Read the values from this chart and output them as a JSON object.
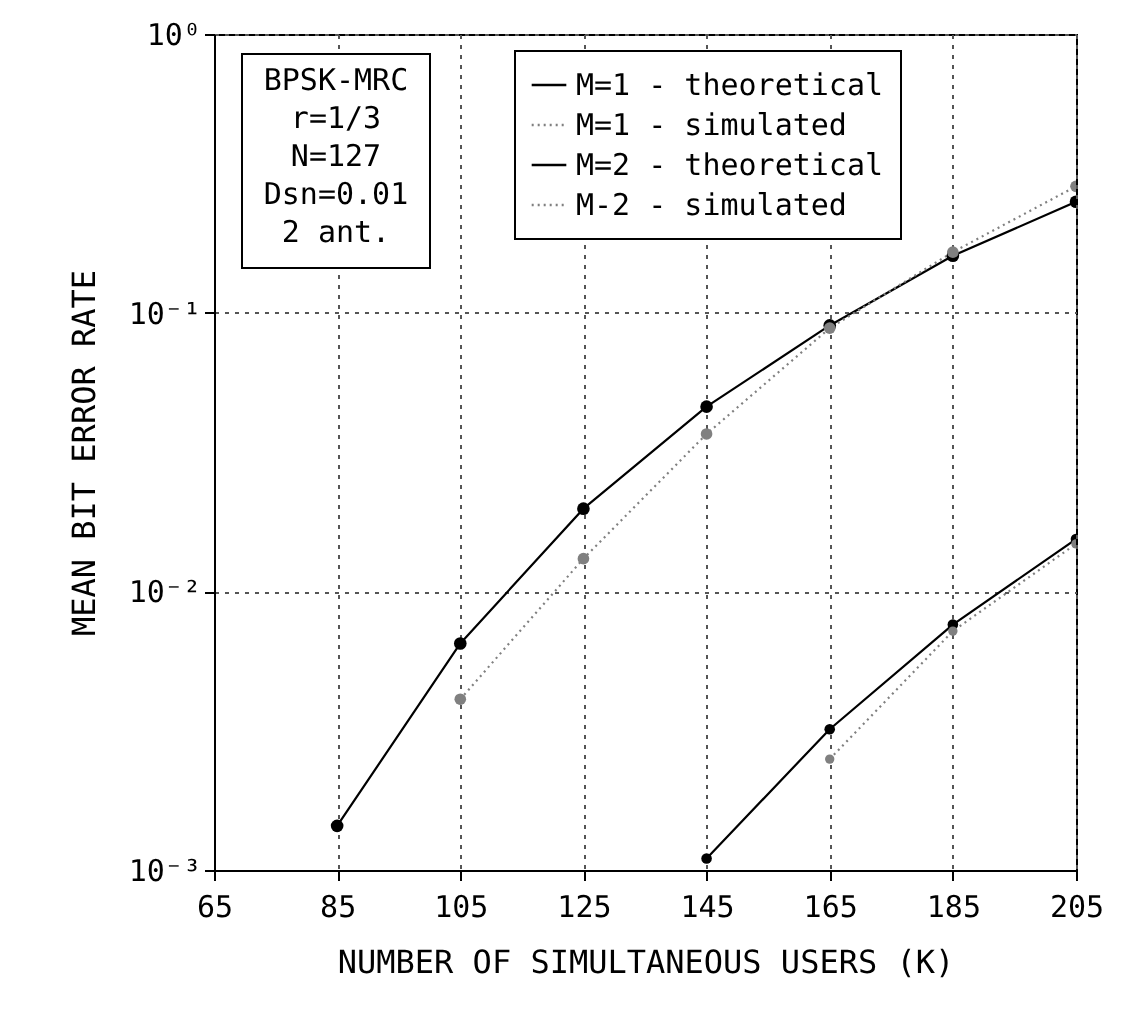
{
  "chart_data": {
    "type": "line",
    "xlabel": "NUMBER OF SIMULTANEOUS USERS (K)",
    "ylabel": "MEAN BIT ERROR RATE",
    "annotations": [
      "BPSK-MRC\nr=1/3\nN=127\nDsn=0.01\n2 ant."
    ],
    "series": [
      {
        "name": "M=1 - theoretical",
        "color": "#000000",
        "line_style": "solid",
        "x": [
          85,
          105,
          125,
          145,
          165,
          185,
          205
        ],
        "values": [
          0.00144,
          0.0065,
          0.0198,
          0.046,
          0.09,
          0.16,
          0.25
        ]
      },
      {
        "name": "M=1 - simulated",
        "color": "#808080",
        "line_style": "dotted",
        "x": [
          105,
          125,
          145,
          165,
          185,
          205
        ],
        "values": [
          0.0041,
          0.0131,
          0.0367,
          0.088,
          0.165,
          0.284
        ]
      },
      {
        "name": "M=2 - theoretical",
        "color": "#000000",
        "line_style": "solid",
        "x": [
          145,
          165,
          185,
          205
        ],
        "values": [
          0.0011,
          0.0032,
          0.0076,
          0.0154
        ]
      },
      {
        "name": "M-2 - simulated",
        "color": "#808080",
        "line_style": "dotted",
        "x": [
          165,
          185,
          205
        ],
        "values": [
          0.0025,
          0.0072,
          0.0148
        ]
      }
    ],
    "xlim": [
      65,
      205
    ],
    "xticks": [
      65,
      85,
      105,
      125,
      145,
      165,
      185,
      205
    ],
    "ylim": [
      0.001,
      1
    ],
    "yticks": [
      {
        "value": 0.001,
        "label": "10⁻³"
      },
      {
        "value": 0.01,
        "label": "10⁻²"
      },
      {
        "value": 0.1,
        "label": "10⁻¹"
      },
      {
        "value": 1,
        "label": "10⁰"
      }
    ],
    "log": "y",
    "grid": true,
    "legend": "top",
    "marker": "circle"
  }
}
